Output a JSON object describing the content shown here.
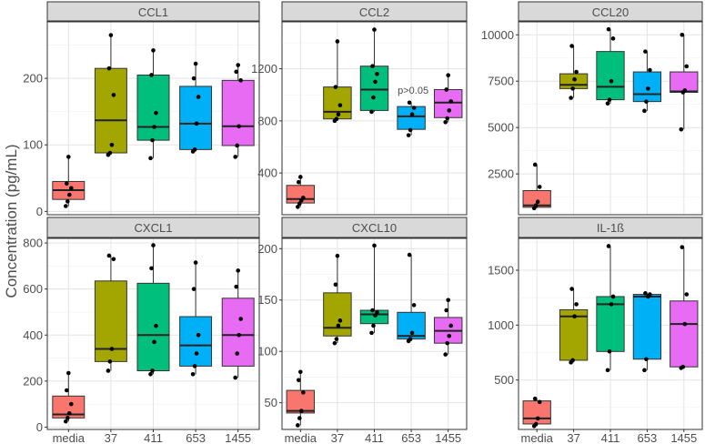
{
  "chart_data": {
    "type": "boxplot",
    "ylabel": "Concentration (pg/mL)",
    "xlabel": "",
    "categories": [
      "media",
      "37",
      "411",
      "653",
      "1455"
    ],
    "colors": {
      "media": "#f8766d",
      "37": "#a3a500",
      "411": "#00bf7d",
      "653": "#00b0f6",
      "1455": "#e76bf3"
    },
    "grid": true,
    "facets": [
      {
        "title": "CCL1",
        "ylim": [
          -5,
          285
        ],
        "yticks": [
          0,
          100,
          200
        ],
        "boxes": [
          {
            "category": "media",
            "q1": 18,
            "median": 32,
            "q3": 45,
            "whisker_low": 8,
            "whisker_high": 82,
            "points": [
              8,
              15,
              25,
              35,
              42,
              82
            ]
          },
          {
            "category": "37",
            "q1": 88,
            "median": 137,
            "q3": 215,
            "whisker_low": 85,
            "whisker_high": 265,
            "points": [
              85,
              88,
              100,
              175,
              215,
              265
            ]
          },
          {
            "category": "411",
            "q1": 107,
            "median": 127,
            "q3": 205,
            "whisker_low": 80,
            "whisker_high": 242,
            "points": [
              80,
              107,
              127,
              148,
              205,
              242
            ]
          },
          {
            "category": "653",
            "q1": 93,
            "median": 132,
            "q3": 188,
            "whisker_low": 90,
            "whisker_high": 222,
            "points": [
              90,
              93,
              132,
              172,
              200,
              222
            ]
          },
          {
            "category": "1455",
            "q1": 99,
            "median": 128,
            "q3": 197,
            "whisker_low": 82,
            "whisker_high": 220,
            "points": [
              82,
              99,
              128,
              197,
              210,
              220
            ]
          }
        ]
      },
      {
        "title": "CCL2",
        "ylim": [
          80,
          1560
        ],
        "yticks": [
          400,
          800,
          1200
        ],
        "annotations": [
          {
            "text": "p>0.05",
            "category": "653",
            "y": 1010
          }
        ],
        "boxes": [
          {
            "category": "media",
            "q1": 170,
            "median": 200,
            "q3": 305,
            "whisker_low": 140,
            "whisker_high": 370,
            "points": [
              140,
              165,
              190,
              210,
              330,
              370
            ]
          },
          {
            "category": "37",
            "q1": 815,
            "median": 870,
            "q3": 1060,
            "whisker_low": 800,
            "whisker_high": 1410,
            "points": [
              800,
              815,
              850,
              920,
              1060,
              1410
            ]
          },
          {
            "category": "411",
            "q1": 880,
            "median": 1040,
            "q3": 1220,
            "whisker_low": 870,
            "whisker_high": 1500,
            "points": [
              870,
              980,
              1100,
              1160,
              1220,
              1500
            ]
          },
          {
            "category": "653",
            "q1": 735,
            "median": 835,
            "q3": 910,
            "whisker_low": 690,
            "whisker_high": 940,
            "points": [
              690,
              730,
              850,
              900,
              940
            ]
          },
          {
            "category": "1455",
            "q1": 825,
            "median": 940,
            "q3": 1040,
            "whisker_low": 790,
            "whisker_high": 1150,
            "points": [
              790,
              820,
              880,
              950,
              1040,
              1150
            ]
          }
        ]
      },
      {
        "title": "CCL20",
        "ylim": [
          300,
          10700
        ],
        "yticks": [
          2500,
          5000,
          7500,
          10000
        ],
        "boxes": [
          {
            "category": "media",
            "q1": 700,
            "median": 800,
            "q3": 1600,
            "whisker_low": 650,
            "whisker_high": 3000,
            "points": [
              650,
              800,
              1000,
              1800,
              3000
            ]
          },
          {
            "category": "37",
            "q1": 7100,
            "median": 7300,
            "q3": 7900,
            "whisker_low": 6600,
            "whisker_high": 9400,
            "points": [
              6600,
              7100,
              7600,
              8000,
              9400
            ]
          },
          {
            "category": "411",
            "q1": 6500,
            "median": 7200,
            "q3": 9100,
            "whisker_low": 6300,
            "whisker_high": 10300,
            "points": [
              6300,
              6500,
              7500,
              9800,
              10300
            ]
          },
          {
            "category": "653",
            "q1": 6400,
            "median": 6800,
            "q3": 8000,
            "whisker_low": 5900,
            "whisker_high": 9100,
            "points": [
              5900,
              6400,
              7100,
              8100,
              9100
            ]
          },
          {
            "category": "1455",
            "q1": 6900,
            "median": 6950,
            "q3": 8000,
            "whisker_low": 4900,
            "whisker_high": 10000,
            "points": [
              4900,
              6900,
              7000,
              8300,
              10000
            ]
          }
        ]
      },
      {
        "title": "CXCL1",
        "ylim": [
          -10,
          820
        ],
        "yticks": [
          0,
          200,
          400,
          600,
          800
        ],
        "boxes": [
          {
            "category": "media",
            "q1": 40,
            "median": 55,
            "q3": 135,
            "whisker_low": 25,
            "whisker_high": 235,
            "points": [
              25,
              40,
              60,
              100,
              160,
              235
            ]
          },
          {
            "category": "37",
            "q1": 285,
            "median": 340,
            "q3": 635,
            "whisker_low": 245,
            "whisker_high": 745,
            "points": [
              245,
              285,
              340,
              730,
              745
            ]
          },
          {
            "category": "411",
            "q1": 245,
            "median": 400,
            "q3": 625,
            "whisker_low": 230,
            "whisker_high": 790,
            "points": [
              230,
              245,
              370,
              440,
              690,
              790
            ]
          },
          {
            "category": "653",
            "q1": 265,
            "median": 355,
            "q3": 480,
            "whisker_low": 230,
            "whisker_high": 715,
            "points": [
              230,
              265,
              320,
              400,
              600,
              715
            ]
          },
          {
            "category": "1455",
            "q1": 265,
            "median": 400,
            "q3": 560,
            "whisker_low": 215,
            "whisker_high": 680,
            "points": [
              215,
              320,
              400,
              470,
              610,
              680
            ]
          }
        ]
      },
      {
        "title": "CXCL10",
        "ylim": [
          24,
          210
        ],
        "yticks": [
          50,
          100,
          150,
          200
        ],
        "boxes": [
          {
            "category": "media",
            "q1": 40,
            "median": 42,
            "q3": 62,
            "whisker_low": 28,
            "whisker_high": 80,
            "points": [
              28,
              35,
              42,
              60,
              72,
              80
            ]
          },
          {
            "category": "37",
            "q1": 115,
            "median": 123,
            "q3": 157,
            "whisker_low": 108,
            "whisker_high": 193,
            "points": [
              108,
              112,
              125,
              130,
              165,
              193
            ]
          },
          {
            "category": "411",
            "q1": 127,
            "median": 136,
            "q3": 140,
            "whisker_low": 118,
            "whisker_high": 203,
            "points": [
              118,
              125,
              135,
              138,
              140,
              203
            ]
          },
          {
            "category": "653",
            "q1": 112,
            "median": 115,
            "q3": 138,
            "whisker_low": 110,
            "whisker_high": 194,
            "points": [
              110,
              112,
              118,
              145,
              194
            ]
          },
          {
            "category": "1455",
            "q1": 108,
            "median": 120,
            "q3": 133,
            "whisker_low": 97,
            "whisker_high": 150,
            "points": [
              97,
              108,
              115,
              125,
              140,
              150
            ]
          }
        ]
      },
      {
        "title": "IL-1ß",
        "ylim": [
          50,
          1790
        ],
        "yticks": [
          500,
          1000,
          1500
        ],
        "boxes": [
          {
            "category": "media",
            "q1": 100,
            "median": 150,
            "q3": 310,
            "whisker_low": 80,
            "whisker_high": 330,
            "points": [
              80,
              100,
              150,
              300,
              330
            ]
          },
          {
            "category": "37",
            "q1": 680,
            "median": 1080,
            "q3": 1140,
            "whisker_low": 660,
            "whisker_high": 1330,
            "points": [
              660,
              680,
              1080,
              1190,
              1330
            ]
          },
          {
            "category": "411",
            "q1": 760,
            "median": 1190,
            "q3": 1260,
            "whisker_low": 590,
            "whisker_high": 1720,
            "points": [
              590,
              760,
              1190,
              1260,
              1720
            ]
          },
          {
            "category": "653",
            "q1": 690,
            "median": 1260,
            "q3": 1280,
            "whisker_low": 590,
            "whisker_high": 1290,
            "points": [
              590,
              690,
              1260,
              1280,
              1290
            ]
          },
          {
            "category": "1455",
            "q1": 620,
            "median": 1010,
            "q3": 1220,
            "whisker_low": 610,
            "whisker_high": 1710,
            "points": [
              610,
              620,
              1010,
              1280,
              1710
            ]
          }
        ]
      }
    ]
  }
}
